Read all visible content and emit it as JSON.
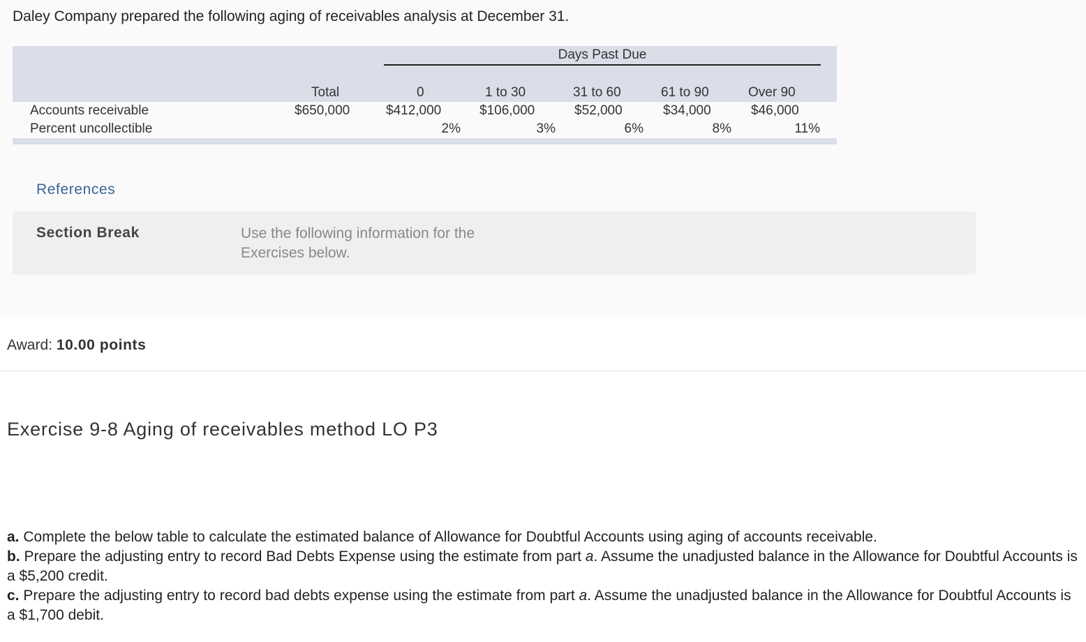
{
  "intro": "Daley Company prepared the following aging of receivables analysis at December 31.",
  "aging_table": {
    "days_past_due_label": "Days Past Due",
    "columns": [
      "Total",
      "0",
      "1 to 30",
      "31 to 60",
      "61 to 90",
      "Over 90"
    ],
    "rows": [
      {
        "label": "Accounts receivable",
        "values": [
          "$650,000",
          "$412,000",
          "$106,000",
          "$52,000",
          "$34,000",
          "$46,000"
        ]
      },
      {
        "label": "Percent uncollectible",
        "values": [
          "",
          "2%",
          "3%",
          "6%",
          "8%",
          "11%"
        ]
      }
    ]
  },
  "references_label": "References",
  "section_break": {
    "title": "Section Break",
    "text": "Use the following information for the Exercises below."
  },
  "award": {
    "label": "Award:",
    "value": "10.00 points"
  },
  "exercise_title": "Exercise 9-8 Aging of receivables method LO P3",
  "instructions": [
    {
      "letter": "a.",
      "text": "Complete the below table to calculate the estimated balance of Allowance for Doubtful Accounts using aging of accounts receivable."
    },
    {
      "letter": "b.",
      "text_before": "Prepare the adjusting entry to record Bad Debts Expense using the estimate from part ",
      "italic": "a",
      "text_after": ". Assume the unadjusted balance in the Allowance for Doubtful Accounts is a $5,200 credit."
    },
    {
      "letter": "c.",
      "text_before": "Prepare the adjusting entry to record bad debts expense using the estimate from part ",
      "italic": "a",
      "text_after": ". Assume the unadjusted balance in the Allowance for Doubtful Accounts is a $1,700 debit."
    }
  ]
}
